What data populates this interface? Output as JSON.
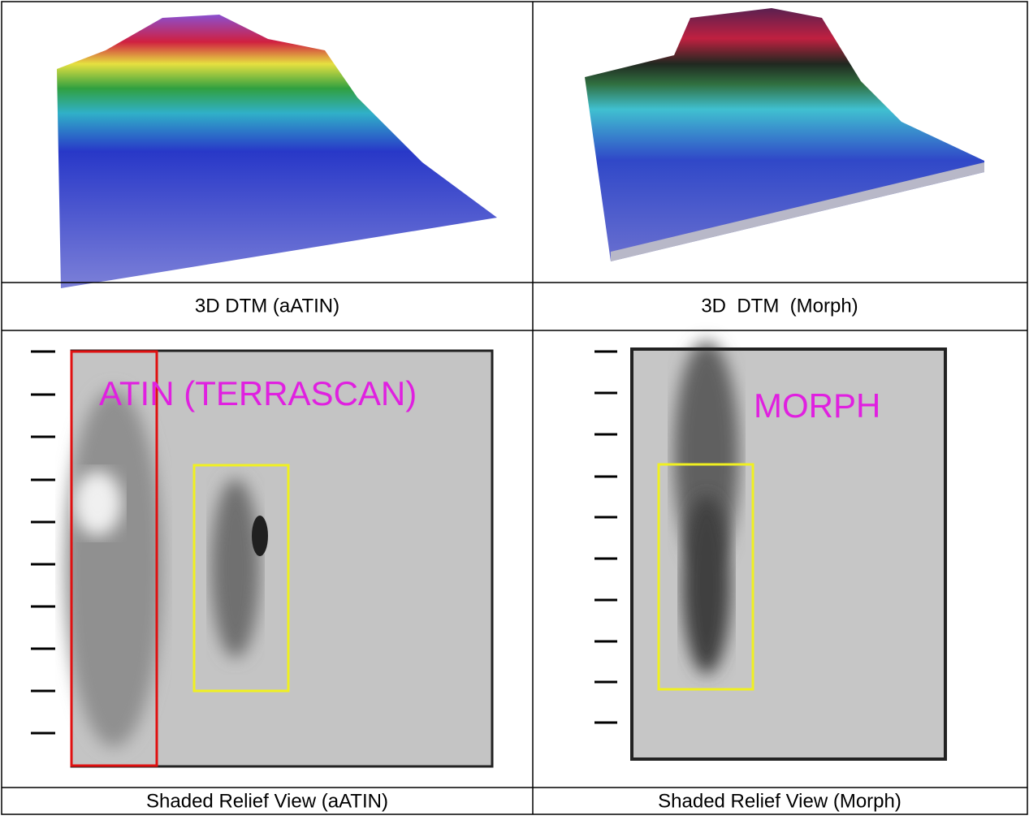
{
  "captions": [
    "3D DTM (aATIN)",
    "3D  DTM  (Morph)",
    "Shaded Relief View (aATIN)",
    "Shaded Relief View (Morph)"
  ],
  "overlays": [
    "ATIN (TERRASCAN)",
    "MORPH"
  ]
}
